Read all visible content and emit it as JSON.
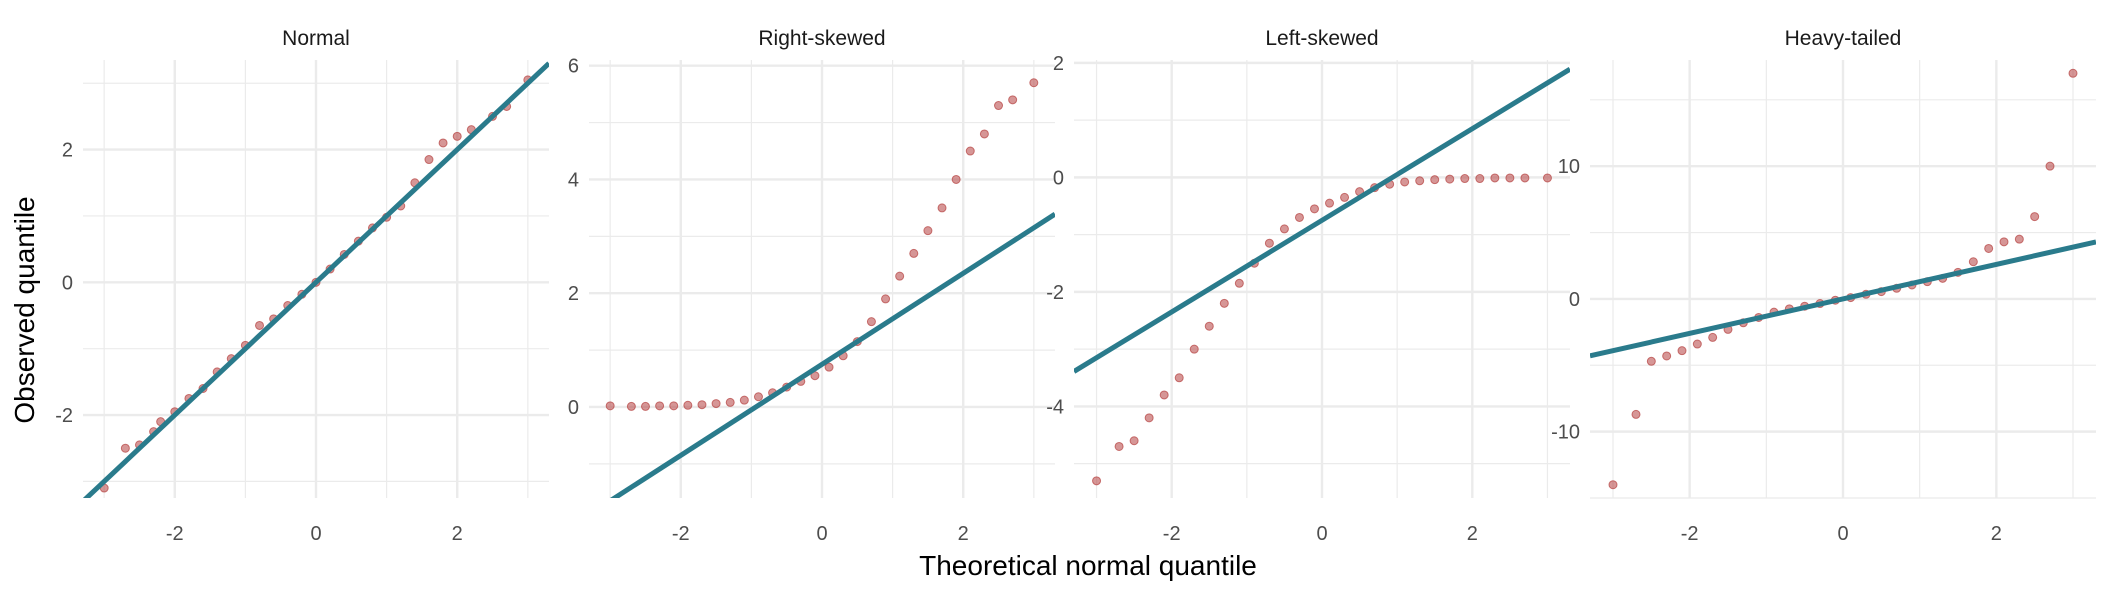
{
  "chart_data": {
    "type": "scatter",
    "xlabel": "Theoretical normal quantile",
    "ylabel": "Observed quantile",
    "grid": true,
    "colors": {
      "points": "#b5403f",
      "line": "#2a7b8c",
      "grid": "#ebebeb",
      "background": "#ffffff"
    },
    "panels": [
      {
        "title": "Normal",
        "xlim": [
          -3.3,
          3.3
        ],
        "ylim": [
          -3.25,
          3.35
        ],
        "xticks": [
          -2,
          0,
          2
        ],
        "yticks": [
          -2,
          0,
          2
        ],
        "ref_line": {
          "intercept": 0.0,
          "slope": 1.0
        },
        "points": [
          [
            -3.0,
            -3.1
          ],
          [
            -2.7,
            -2.5
          ],
          [
            -2.5,
            -2.45
          ],
          [
            -2.3,
            -2.25
          ],
          [
            -2.2,
            -2.1
          ],
          [
            -2.0,
            -1.95
          ],
          [
            -1.8,
            -1.75
          ],
          [
            -1.6,
            -1.6
          ],
          [
            -1.4,
            -1.35
          ],
          [
            -1.2,
            -1.15
          ],
          [
            -1.0,
            -0.95
          ],
          [
            -0.8,
            -0.65
          ],
          [
            -0.6,
            -0.55
          ],
          [
            -0.4,
            -0.35
          ],
          [
            -0.2,
            -0.18
          ],
          [
            0.0,
            0.0
          ],
          [
            0.2,
            0.2
          ],
          [
            0.4,
            0.42
          ],
          [
            0.6,
            0.62
          ],
          [
            0.8,
            0.82
          ],
          [
            1.0,
            0.98
          ],
          [
            1.2,
            1.15
          ],
          [
            1.4,
            1.5
          ],
          [
            1.6,
            1.85
          ],
          [
            1.8,
            2.1
          ],
          [
            2.0,
            2.2
          ],
          [
            2.2,
            2.3
          ],
          [
            2.5,
            2.5
          ],
          [
            2.7,
            2.65
          ],
          [
            3.0,
            3.05
          ]
        ]
      },
      {
        "title": "Right-skewed",
        "xlim": [
          -3.3,
          3.3
        ],
        "ylim": [
          -1.6,
          6.1
        ],
        "xticks": [
          -2,
          0,
          2
        ],
        "yticks": [
          0,
          2,
          4,
          6
        ],
        "ref_line": {
          "intercept": 0.75,
          "slope": 0.8
        },
        "points": [
          [
            -3.0,
            0.02
          ],
          [
            -2.7,
            0.01
          ],
          [
            -2.5,
            0.01
          ],
          [
            -2.3,
            0.02
          ],
          [
            -2.1,
            0.02
          ],
          [
            -1.9,
            0.03
          ],
          [
            -1.7,
            0.04
          ],
          [
            -1.5,
            0.06
          ],
          [
            -1.3,
            0.08
          ],
          [
            -1.1,
            0.12
          ],
          [
            -0.9,
            0.18
          ],
          [
            -0.7,
            0.25
          ],
          [
            -0.5,
            0.35
          ],
          [
            -0.3,
            0.45
          ],
          [
            -0.1,
            0.55
          ],
          [
            0.1,
            0.7
          ],
          [
            0.3,
            0.9
          ],
          [
            0.5,
            1.15
          ],
          [
            0.7,
            1.5
          ],
          [
            0.9,
            1.9
          ],
          [
            1.1,
            2.3
          ],
          [
            1.3,
            2.7
          ],
          [
            1.5,
            3.1
          ],
          [
            1.7,
            3.5
          ],
          [
            1.9,
            4.0
          ],
          [
            2.1,
            4.5
          ],
          [
            2.3,
            4.8
          ],
          [
            2.5,
            5.3
          ],
          [
            2.7,
            5.4
          ],
          [
            3.0,
            5.7
          ]
        ]
      },
      {
        "title": "Left-skewed",
        "xlim": [
          -3.3,
          3.3
        ],
        "ylim": [
          -5.6,
          2.05
        ],
        "xticks": [
          -2,
          0,
          2
        ],
        "yticks": [
          -4,
          -2,
          0,
          2
        ],
        "ref_line": {
          "intercept": -0.75,
          "slope": 0.8
        },
        "points": [
          [
            -3.0,
            -5.3
          ],
          [
            -2.7,
            -4.7
          ],
          [
            -2.5,
            -4.6
          ],
          [
            -2.3,
            -4.2
          ],
          [
            -2.1,
            -3.8
          ],
          [
            -1.9,
            -3.5
          ],
          [
            -1.7,
            -3.0
          ],
          [
            -1.5,
            -2.6
          ],
          [
            -1.3,
            -2.2
          ],
          [
            -1.1,
            -1.85
          ],
          [
            -0.9,
            -1.5
          ],
          [
            -0.7,
            -1.15
          ],
          [
            -0.5,
            -0.9
          ],
          [
            -0.3,
            -0.7
          ],
          [
            -0.1,
            -0.55
          ],
          [
            0.1,
            -0.45
          ],
          [
            0.3,
            -0.35
          ],
          [
            0.5,
            -0.25
          ],
          [
            0.7,
            -0.18
          ],
          [
            0.9,
            -0.12
          ],
          [
            1.1,
            -0.08
          ],
          [
            1.3,
            -0.06
          ],
          [
            1.5,
            -0.04
          ],
          [
            1.7,
            -0.03
          ],
          [
            1.9,
            -0.02
          ],
          [
            2.1,
            -0.02
          ],
          [
            2.3,
            -0.01
          ],
          [
            2.5,
            -0.01
          ],
          [
            2.7,
            -0.01
          ],
          [
            3.0,
            -0.01
          ]
        ]
      },
      {
        "title": "Heavy-tailed",
        "xlim": [
          -3.3,
          3.3
        ],
        "ylim": [
          -15.0,
          18.0
        ],
        "xticks": [
          -2,
          0,
          2
        ],
        "yticks": [
          -10,
          0,
          10
        ],
        "ref_line": {
          "intercept": 0.0,
          "slope": 1.3
        },
        "points": [
          [
            -3.0,
            -14.0
          ],
          [
            -2.7,
            -8.7
          ],
          [
            -2.5,
            -4.7
          ],
          [
            -2.3,
            -4.3
          ],
          [
            -2.1,
            -3.9
          ],
          [
            -1.9,
            -3.4
          ],
          [
            -1.7,
            -2.9
          ],
          [
            -1.5,
            -2.3
          ],
          [
            -1.3,
            -1.8
          ],
          [
            -1.1,
            -1.4
          ],
          [
            -0.9,
            -1.0
          ],
          [
            -0.7,
            -0.75
          ],
          [
            -0.5,
            -0.55
          ],
          [
            -0.3,
            -0.35
          ],
          [
            -0.1,
            -0.1
          ],
          [
            0.1,
            0.1
          ],
          [
            0.3,
            0.35
          ],
          [
            0.5,
            0.55
          ],
          [
            0.7,
            0.8
          ],
          [
            0.9,
            1.05
          ],
          [
            1.1,
            1.3
          ],
          [
            1.3,
            1.55
          ],
          [
            1.5,
            2.0
          ],
          [
            1.7,
            2.8
          ],
          [
            1.9,
            3.8
          ],
          [
            2.1,
            4.3
          ],
          [
            2.3,
            4.5
          ],
          [
            2.5,
            6.2
          ],
          [
            2.7,
            10.0
          ],
          [
            3.0,
            17.0
          ]
        ]
      }
    ]
  }
}
